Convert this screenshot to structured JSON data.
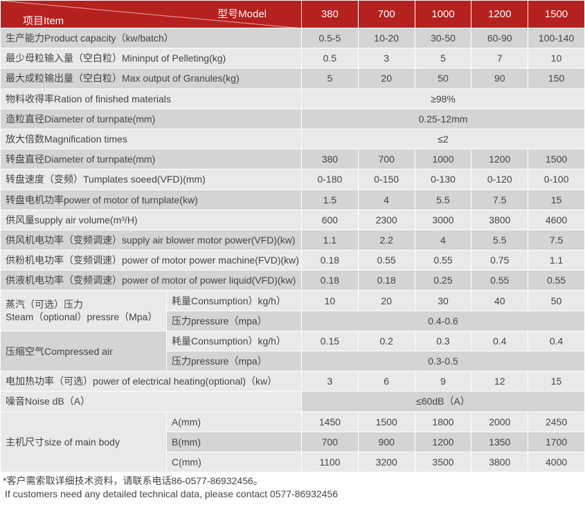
{
  "header": {
    "item": "项目Item",
    "model": "型号Model",
    "models": [
      "380",
      "700",
      "1000",
      "1200",
      "1500"
    ]
  },
  "rows": [
    {
      "label": "生产能力Product capacity（kw/batch）",
      "values": [
        "0.5-5",
        "10-20",
        "30-50",
        "60-90",
        "100-140"
      ],
      "shade": "d"
    },
    {
      "label": "最少母粒输入量（空白粒）Mininput of Pelleting(kg)",
      "values": [
        "0.5",
        "3",
        "5",
        "7",
        "10"
      ],
      "shade": "l"
    },
    {
      "label": "最大成粒输出量（空白粒）Max output of Granules(kg)",
      "values": [
        "5",
        "20",
        "50",
        "90",
        "150"
      ],
      "shade": "d"
    },
    {
      "label": "物料收得率Ration of finished materials",
      "merged": "≥98%",
      "shade": "l"
    },
    {
      "label": "造粒直径Diameter of turnpate(mm)",
      "merged": "0.25-12mm",
      "shade": "d"
    },
    {
      "label": "放大倍数Magnification times",
      "merged": "≤2",
      "shade": "l"
    },
    {
      "label": "转盘直径Diameter of turnpate(mm)",
      "values": [
        "380",
        "700",
        "1000",
        "1200",
        "1500"
      ],
      "shade": "d"
    },
    {
      "label": "转盘速度（变频）Tumplates soeed(VFD)(mm)",
      "values": [
        "0-180",
        "0-150",
        "0-130",
        "0-120",
        "0-100"
      ],
      "shade": "l"
    },
    {
      "label": "转盘电机功率power of motor of turnplate(kw)",
      "values": [
        "1.5",
        "4",
        "5.5",
        "7.5",
        "15"
      ],
      "shade": "d"
    },
    {
      "label": "供风量supply air volume(m³/H)",
      "values": [
        "600",
        "2300",
        "3000",
        "3800",
        "4600"
      ],
      "shade": "l"
    },
    {
      "label": "供风机电功率（变频调速）supply air blower motor power(VFD)(kw)",
      "values": [
        "1.1",
        "2.2",
        "4",
        "5.5",
        "7.5"
      ],
      "shade": "d"
    },
    {
      "label": "供粉机电功率（变频调速）power of motor power machine(FVD)(kw)",
      "values": [
        "0.18",
        "0.55",
        "0.55",
        "0.75",
        "1.1"
      ],
      "shade": "l"
    },
    {
      "label": "供液机电功率（变频调速）power of motor of power liquid(VFD)(kw)",
      "values": [
        "0.18",
        "0.18",
        "0.25",
        "0.55",
        "0.55"
      ],
      "shade": "d"
    },
    {
      "label": "蒸汽（可选）压力\nSteam（optional）pressre（Mpa）",
      "shade": "l",
      "sub": [
        {
          "label": "耗量Consumption）kg/h）",
          "values": [
            "10",
            "20",
            "30",
            "40",
            "50"
          ],
          "shade": "l"
        },
        {
          "label": "压力pressure（mpa）",
          "merged": "0.4-0.6",
          "shade": "d"
        }
      ]
    },
    {
      "label": "压缩空气Compressed air",
      "shade": "d",
      "sub": [
        {
          "label": "耗量Consumption）kg/h）",
          "values": [
            "0.15",
            "0.2",
            "0.3",
            "0.4",
            "0.4"
          ],
          "shade": "l"
        },
        {
          "label": "压力pressure（mpa）",
          "merged": "0.3-0.5",
          "shade": "d"
        }
      ]
    },
    {
      "label": "电加热功率（可选）power of electrical heating(optional)（kw）",
      "values": [
        "3",
        "6",
        "9",
        "12",
        "15"
      ],
      "shade": "l"
    },
    {
      "label": "噪音Noise dB（A）",
      "merged": "≤60dB（A）",
      "shade": "l",
      "vshade": "d"
    },
    {
      "label": "主机尺寸size of main body",
      "shade": "l",
      "sub": [
        {
          "label": "A(mm)",
          "values": [
            "1450",
            "1500",
            "1800",
            "2000",
            "2450"
          ],
          "shade": "l"
        },
        {
          "label": "B(mm)",
          "values": [
            "700",
            "900",
            "1200",
            "1350",
            "1700"
          ],
          "shade": "d"
        },
        {
          "label": "C(mm)",
          "values": [
            "1100",
            "3200",
            "3500",
            "3800",
            "4000"
          ],
          "shade": "l"
        }
      ]
    }
  ],
  "footer": {
    "cn": "*客户需索取详细技术资料，请联系电话86-0577-86932456。",
    "en": "If customers need any detailed technical data, please contact 0577-86932456"
  },
  "colors": {
    "header": "#b5211f",
    "row_dark": "#d4d4d4",
    "row_light": "#e9e9e9"
  }
}
